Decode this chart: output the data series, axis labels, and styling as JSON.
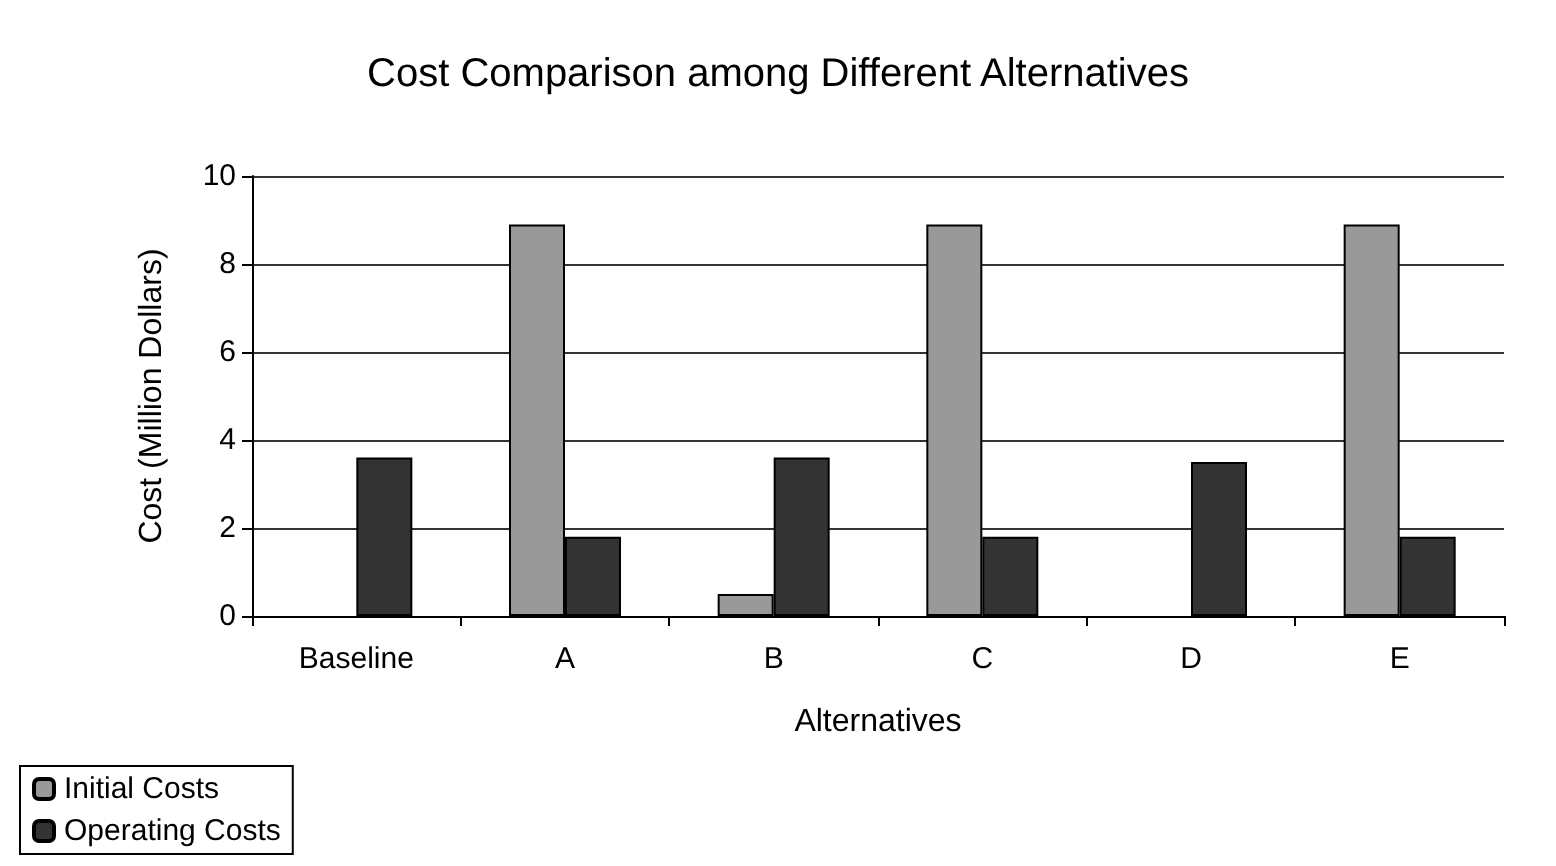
{
  "chart_data": {
    "type": "bar",
    "title": "Cost Comparison among Different Alternatives",
    "xlabel": "Alternatives",
    "ylabel": "Cost (Million Dollars)",
    "categories": [
      "Baseline",
      "A",
      "B",
      "C",
      "D",
      "E"
    ],
    "series": [
      {
        "name": "Initial Costs",
        "color": "#999999",
        "values": [
          0,
          8.9,
          0.5,
          8.9,
          0,
          8.9
        ]
      },
      {
        "name": "Operating Costs",
        "color": "#333333",
        "values": [
          3.6,
          1.8,
          3.6,
          1.8,
          3.5,
          1.8
        ]
      }
    ],
    "ylim": [
      0,
      10
    ],
    "yticks": [
      0,
      2,
      4,
      6,
      8,
      10
    ],
    "grid": "y",
    "legend": "bottom left"
  }
}
